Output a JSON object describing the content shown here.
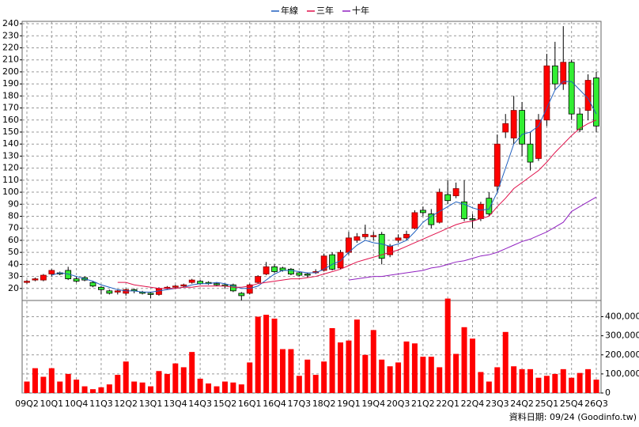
{
  "chart_data": [
    {
      "type": "candlestick",
      "open": [
        25,
        27,
        27,
        32,
        33,
        35,
        28,
        29,
        25,
        21,
        18,
        17,
        16,
        19,
        17,
        16,
        15,
        20,
        21,
        22,
        25,
        26,
        25,
        24,
        23,
        23,
        16,
        16,
        25,
        32,
        38,
        37,
        36,
        33,
        32,
        33,
        35,
        48,
        37,
        50,
        60,
        63,
        63,
        65,
        48,
        60,
        62,
        70,
        85,
        82,
        75,
        98,
        97,
        92,
        78,
        78,
        95,
        105,
        150,
        145,
        168,
        140,
        128,
        160,
        205,
        190,
        208,
        165,
        168,
        195
      ],
      "high": [
        27,
        29,
        32,
        36,
        34,
        38,
        30,
        30,
        26,
        22,
        19,
        19,
        20,
        20,
        18,
        17,
        21,
        22,
        23,
        24,
        28,
        27,
        26,
        25,
        24,
        24,
        17,
        24,
        31,
        42,
        40,
        38,
        37,
        34,
        33,
        36,
        49,
        50,
        52,
        67,
        66,
        73,
        67,
        67,
        57,
        65,
        68,
        85,
        88,
        86,
        103,
        110,
        108,
        110,
        82,
        92,
        100,
        148,
        165,
        180,
        175,
        150,
        165,
        215,
        225,
        238,
        210,
        170,
        198,
        200
      ],
      "low": [
        24,
        26,
        26,
        30,
        31,
        27,
        25,
        26,
        21,
        15,
        15,
        15,
        14,
        16,
        15,
        12,
        14,
        19,
        20,
        21,
        24,
        23,
        23,
        22,
        20,
        17,
        10,
        15,
        24,
        31,
        33,
        34,
        31,
        30,
        29,
        32,
        34,
        35,
        36,
        48,
        58,
        61,
        60,
        40,
        46,
        58,
        60,
        69,
        80,
        70,
        74,
        90,
        95,
        76,
        70,
        76,
        80,
        100,
        145,
        140,
        130,
        118,
        126,
        155,
        185,
        185,
        160,
        150,
        160,
        150
      ],
      "close": [
        26,
        28,
        31,
        35,
        32,
        28,
        26,
        27,
        22,
        19,
        16,
        18,
        19,
        18,
        16,
        15,
        20,
        21,
        22,
        23,
        27,
        24,
        24,
        23,
        22,
        18,
        14,
        23,
        30,
        38,
        34,
        35,
        32,
        31,
        31,
        34,
        47,
        36,
        50,
        62,
        63,
        65,
        64,
        45,
        55,
        62,
        65,
        83,
        83,
        73,
        100,
        93,
        103,
        78,
        77,
        90,
        82,
        140,
        157,
        168,
        140,
        125,
        160,
        205,
        190,
        208,
        165,
        152,
        193,
        155
      ],
      "up_color": "#ff0000",
      "down_color": "#33ee33",
      "series": [
        {
          "name": "年線",
          "color": "#1f5fbf",
          "values": [
            null,
            null,
            null,
            31,
            33,
            32,
            30,
            28,
            26,
            23,
            21,
            19,
            18,
            18,
            17,
            17,
            18,
            19,
            20,
            21,
            23,
            24,
            24,
            25,
            24,
            22,
            20,
            20,
            22,
            27,
            32,
            35,
            35,
            34,
            33,
            33,
            36,
            40,
            43,
            50,
            56,
            60,
            58,
            57,
            55,
            57,
            60,
            67,
            75,
            80,
            84,
            88,
            92,
            90,
            87,
            85,
            86,
            100,
            120,
            140,
            148,
            150,
            155,
            170,
            185,
            192,
            192,
            185,
            178,
            165
          ]
        },
        {
          "name": "三年",
          "color": "#e0104a",
          "values": [
            null,
            null,
            null,
            null,
            null,
            null,
            null,
            null,
            null,
            null,
            null,
            25,
            25,
            23,
            22,
            21,
            20,
            20,
            20,
            21,
            21,
            22,
            22,
            22,
            22,
            21,
            21,
            22,
            24,
            25,
            26,
            27,
            28,
            28,
            29,
            30,
            32,
            34,
            36,
            39,
            42,
            44,
            46,
            48,
            50,
            52,
            55,
            58,
            61,
            64,
            67,
            70,
            73,
            75,
            76,
            78,
            80,
            88,
            95,
            103,
            108,
            113,
            118,
            125,
            133,
            140,
            147,
            153,
            157,
            160
          ]
        },
        {
          "name": "十年",
          "color": "#9020c0",
          "values": [
            null,
            null,
            null,
            null,
            null,
            null,
            null,
            null,
            null,
            null,
            null,
            null,
            null,
            null,
            null,
            null,
            null,
            null,
            null,
            null,
            null,
            null,
            null,
            null,
            null,
            null,
            null,
            null,
            null,
            null,
            null,
            null,
            null,
            null,
            null,
            null,
            null,
            null,
            null,
            27,
            28,
            29,
            30,
            30,
            31,
            32,
            33,
            34,
            35,
            37,
            38,
            40,
            42,
            43,
            45,
            47,
            48,
            50,
            53,
            56,
            59,
            61,
            64,
            67,
            71,
            75,
            84,
            88,
            92,
            96
          ]
        }
      ],
      "ylim": [
        10,
        242
      ],
      "yticks": [
        20,
        30,
        40,
        50,
        60,
        70,
        80,
        90,
        100,
        110,
        120,
        130,
        140,
        150,
        160,
        170,
        180,
        190,
        200,
        210,
        220,
        230,
        240
      ],
      "grid": true
    },
    {
      "type": "bar",
      "categories": [
        "09Q2",
        null,
        null,
        "10Q1",
        null,
        null,
        "10Q4",
        null,
        null,
        "11Q3",
        null,
        null,
        "12Q2",
        null,
        null,
        "13Q1",
        null,
        null,
        "13Q4",
        null,
        null,
        "14Q3",
        null,
        null,
        "15Q2",
        null,
        null,
        "16Q1",
        null,
        null,
        "16Q4",
        null,
        null,
        "17Q3",
        null,
        null,
        "18Q2",
        null,
        null,
        "19Q1",
        null,
        null,
        "19Q4",
        null,
        null,
        "20Q3",
        null,
        null,
        "21Q2",
        null,
        null,
        "22Q1",
        null,
        null,
        "22Q4",
        null,
        null,
        "23Q3",
        null,
        null,
        "24Q2",
        null,
        null,
        "25Q1",
        null,
        null,
        "25Q4",
        null,
        null,
        "26Q3"
      ],
      "values": [
        60000,
        130000,
        85000,
        130000,
        60000,
        100000,
        70000,
        35000,
        20000,
        30000,
        45000,
        95000,
        165000,
        60000,
        55000,
        35000,
        115000,
        100000,
        155000,
        135000,
        215000,
        75000,
        50000,
        35000,
        60000,
        55000,
        45000,
        160000,
        400000,
        410000,
        390000,
        230000,
        230000,
        90000,
        175000,
        95000,
        165000,
        340000,
        265000,
        275000,
        385000,
        200000,
        330000,
        175000,
        140000,
        160000,
        270000,
        260000,
        190000,
        190000,
        135000,
        495000,
        205000,
        345000,
        285000,
        110000,
        60000,
        135000,
        320000,
        140000,
        125000,
        125000,
        80000,
        90000,
        100000,
        125000,
        80000,
        105000,
        125000,
        70000
      ],
      "color": "#ff0000",
      "ylim": [
        0,
        485000
      ],
      "yticks": [
        0,
        {
          "value": 100000,
          "label": "100,000"
        },
        {
          "value": 200000,
          "label": "200,000"
        },
        {
          "value": 300000,
          "label": "300,000"
        },
        {
          "value": 400000,
          "label": "400,000"
        }
      ],
      "grid": true
    }
  ],
  "footer": "資料日期: 09/24 (Goodinfo.tw)"
}
